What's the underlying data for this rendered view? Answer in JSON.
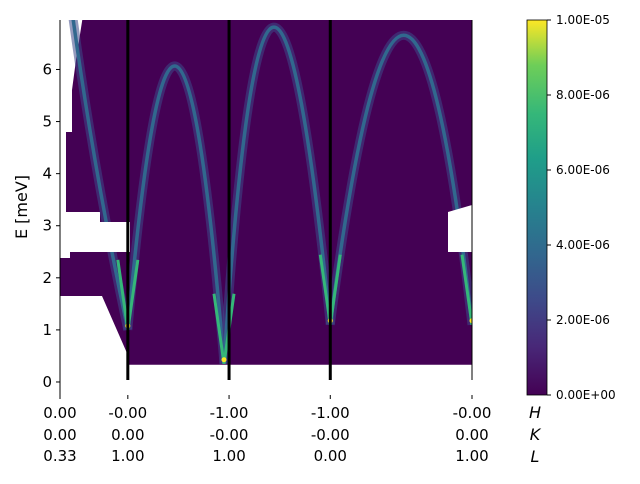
{
  "chart_data": {
    "type": "heatmap",
    "ylabel": "E [meV]",
    "ylim": [
      -0.25,
      6.95
    ],
    "yticks": [
      "0",
      "1",
      "2",
      "3",
      "4",
      "5",
      "6"
    ],
    "x_ticks": [
      {
        "h": "0.00",
        "k": "0.00",
        "l": "0.33"
      },
      {
        "h": "-0.00",
        "k": "0.00",
        "l": "1.00"
      },
      {
        "h": "-1.00",
        "k": "-0.00",
        "l": "1.00"
      },
      {
        "h": "-1.00",
        "k": "-0.00",
        "l": "0.00"
      },
      {
        "h": "-0.00",
        "k": "0.00",
        "l": "1.00"
      }
    ],
    "x_tick_positions": [
      0,
      0.67,
      1.67,
      2.67,
      4.07
    ],
    "x_range": [
      0,
      4.07
    ],
    "axis_names": [
      "H",
      "K",
      "L"
    ],
    "segment_boundaries": [
      0.67,
      1.67,
      2.67,
      4.07
    ],
    "energy_min": 0.33,
    "branch_minima": [
      {
        "x": 0.67,
        "e": 1.0,
        "intensity": 1e-05
      },
      {
        "x": 1.62,
        "e": 0.35,
        "intensity": 8e-06
      },
      {
        "x": 2.67,
        "e": 1.1,
        "intensity": 1e-05
      },
      {
        "x": 4.07,
        "e": 1.1,
        "intensity": 9e-06
      }
    ],
    "branch_maxima": [
      {
        "x": 0.22,
        "e": 6.95
      },
      {
        "x": 1.15,
        "e": 6.5
      },
      {
        "x": 2.05,
        "e": 6.95
      },
      {
        "x": 3.42,
        "e": 6.95
      }
    ],
    "colorbar": {
      "vmin": 0,
      "vmax": 1e-05,
      "ticks": [
        "0.00E+00",
        "2.00E-06",
        "4.00E-06",
        "6.00E-06",
        "8.00E-06",
        "1.00E-05"
      ],
      "colormap": "viridis"
    },
    "colors": {
      "background": "#440154",
      "max": "#fde725",
      "boundary": "#000000"
    }
  }
}
